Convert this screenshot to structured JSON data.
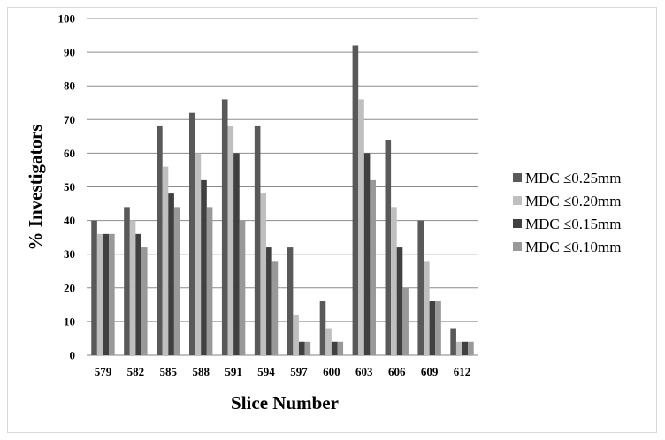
{
  "chart_data": {
    "type": "bar",
    "title": "",
    "xlabel": "Slice Number",
    "ylabel": "% Investigators",
    "categories": [
      "579",
      "582",
      "585",
      "588",
      "591",
      "594",
      "597",
      "600",
      "603",
      "606",
      "609",
      "612"
    ],
    "ylim": [
      0,
      100
    ],
    "yticks": [
      "0",
      "10",
      "20",
      "30",
      "40",
      "50",
      "60",
      "70",
      "80",
      "90",
      "100"
    ],
    "grid": true,
    "legend_position": "right",
    "series": [
      {
        "name": "MDC ≤0.25mm",
        "color": "#595959",
        "values": [
          40,
          44,
          68,
          72,
          76,
          68,
          32,
          16,
          92,
          64,
          40,
          8
        ]
      },
      {
        "name": "MDC ≤0.20mm",
        "color": "#bfbfbf",
        "values": [
          36,
          40,
          56,
          60,
          68,
          48,
          12,
          8,
          76,
          44,
          28,
          4
        ]
      },
      {
        "name": "MDC ≤0.15mm",
        "color": "#404040",
        "values": [
          36,
          36,
          48,
          52,
          60,
          32,
          4,
          4,
          60,
          32,
          16,
          4
        ]
      },
      {
        "name": "MDC ≤0.10mm",
        "color": "#999999",
        "values": [
          36,
          32,
          44,
          44,
          40,
          28,
          4,
          4,
          52,
          20,
          16,
          4
        ]
      }
    ]
  }
}
